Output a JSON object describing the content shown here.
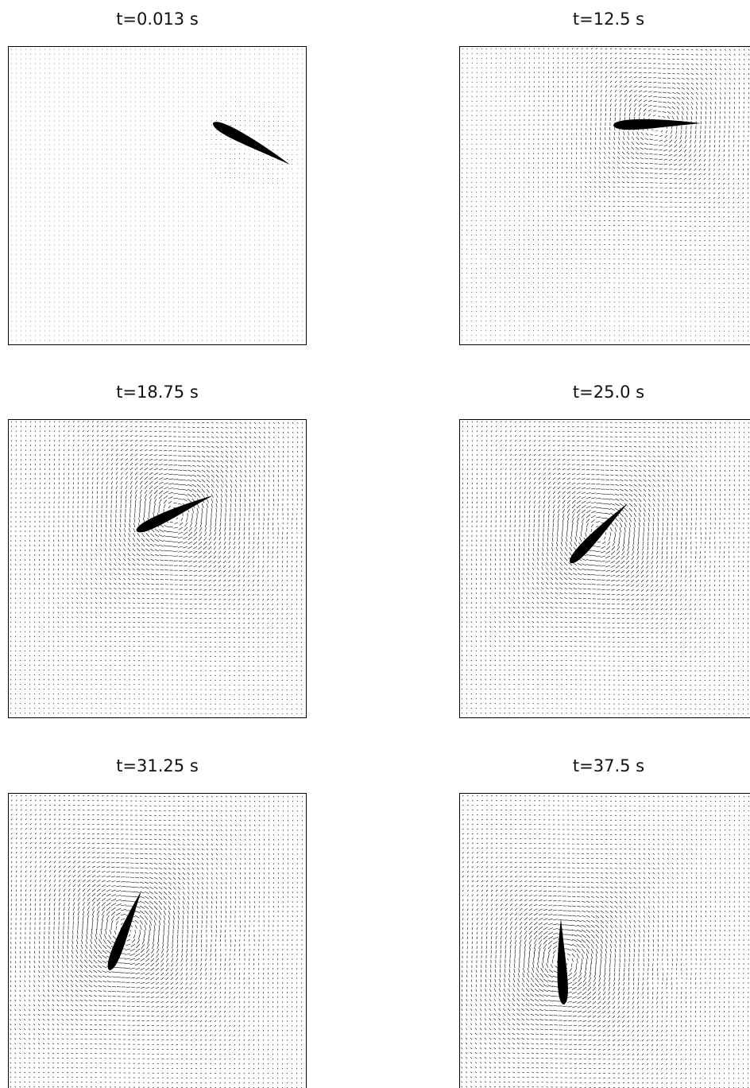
{
  "panels": [
    {
      "title": "t=0.013 s"
    },
    {
      "title": "t=12.5 s"
    },
    {
      "title": "t=18.75 s"
    },
    {
      "title": "t=25.0 s"
    },
    {
      "title": "t=31.25 s"
    },
    {
      "title": "t=37.5 s"
    }
  ]
}
